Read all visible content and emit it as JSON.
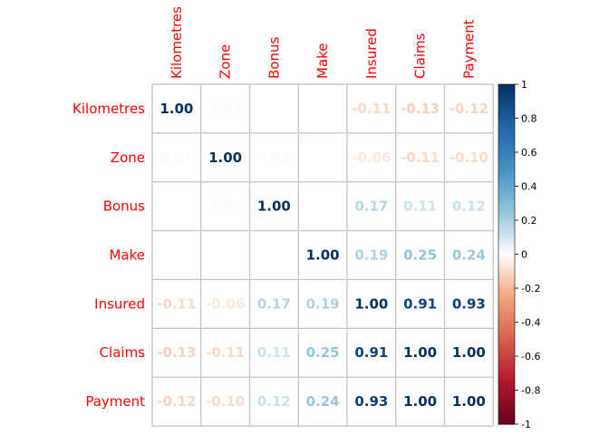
{
  "chart_data": {
    "type": "heatmap",
    "variables": [
      "Kilometres",
      "Zone",
      "Bonus",
      "Make",
      "Insured",
      "Claims",
      "Payment"
    ],
    "matrix": [
      [
        1.0,
        0.01,
        0.0,
        0.0,
        -0.11,
        -0.13,
        -0.12
      ],
      [
        0.01,
        1.0,
        0.01,
        0.0,
        -0.06,
        -0.11,
        -0.1
      ],
      [
        0.0,
        0.01,
        1.0,
        0.0,
        0.17,
        0.11,
        0.12
      ],
      [
        0.0,
        0.0,
        0.0,
        1.0,
        0.19,
        0.25,
        0.24
      ],
      [
        -0.11,
        -0.06,
        0.17,
        0.19,
        1.0,
        0.91,
        0.93
      ],
      [
        -0.13,
        -0.11,
        0.11,
        0.25,
        0.91,
        1.0,
        1.0
      ],
      [
        -0.12,
        -0.1,
        0.12,
        0.24,
        0.93,
        1.0,
        1.0
      ]
    ],
    "colorbar": {
      "range": [
        -1,
        1
      ],
      "ticks": [
        "1",
        "0.8",
        "0.6",
        "0.4",
        "0.2",
        "0",
        "-0.2",
        "-0.4",
        "-0.6",
        "-0.8",
        "-1"
      ]
    },
    "label_color": "#ff0000",
    "grid_color": "#c8c8c8",
    "color_negative": "#67001f",
    "color_neutral": "#ffffff",
    "color_positive": "#053061"
  }
}
